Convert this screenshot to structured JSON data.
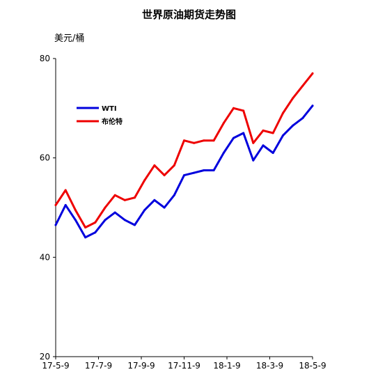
{
  "chart_data": {
    "type": "line",
    "title": "世界原油期货走势图",
    "unit_label": "美元/桶",
    "xlabel": "",
    "ylabel": "",
    "ylim": [
      20,
      80
    ],
    "yticks": [
      20,
      40,
      60,
      80
    ],
    "xticks": [
      "17-5-9",
      "17-7-9",
      "17-9-9",
      "17-11-9",
      "18-1-9",
      "18-3-9",
      "18-5-9"
    ],
    "x": [
      "17-5-9",
      "17-5-23",
      "17-6-6",
      "17-6-20",
      "17-7-4",
      "17-7-18",
      "17-8-1",
      "17-8-15",
      "17-8-29",
      "17-9-12",
      "17-9-26",
      "17-10-10",
      "17-10-24",
      "17-11-7",
      "17-11-21",
      "17-12-5",
      "17-12-19",
      "18-1-2",
      "18-1-16",
      "18-1-30",
      "18-2-13",
      "18-2-27",
      "18-3-13",
      "18-3-27",
      "18-4-10",
      "18-4-24",
      "18-5-9"
    ],
    "series": [
      {
        "name": "WTI",
        "color": "#0000dd",
        "values": [
          46.5,
          50.5,
          47.5,
          44.0,
          45.0,
          47.5,
          49.0,
          47.5,
          46.5,
          49.5,
          51.5,
          50.0,
          52.5,
          56.5,
          57.0,
          57.5,
          57.5,
          61.0,
          64.0,
          65.0,
          59.5,
          62.5,
          61.0,
          64.5,
          66.5,
          68.0,
          70.5
        ]
      },
      {
        "name": "布伦特",
        "color": "#ee0000",
        "values": [
          50.5,
          53.5,
          49.5,
          46.0,
          47.0,
          50.0,
          52.5,
          51.5,
          52.0,
          55.5,
          58.5,
          56.5,
          58.5,
          63.5,
          63.0,
          63.5,
          63.5,
          67.0,
          70.0,
          69.5,
          63.0,
          65.5,
          65.0,
          69.0,
          72.0,
          74.5,
          77.0
        ]
      }
    ],
    "legend": {
      "position": "upper-left"
    },
    "grid": false
  }
}
